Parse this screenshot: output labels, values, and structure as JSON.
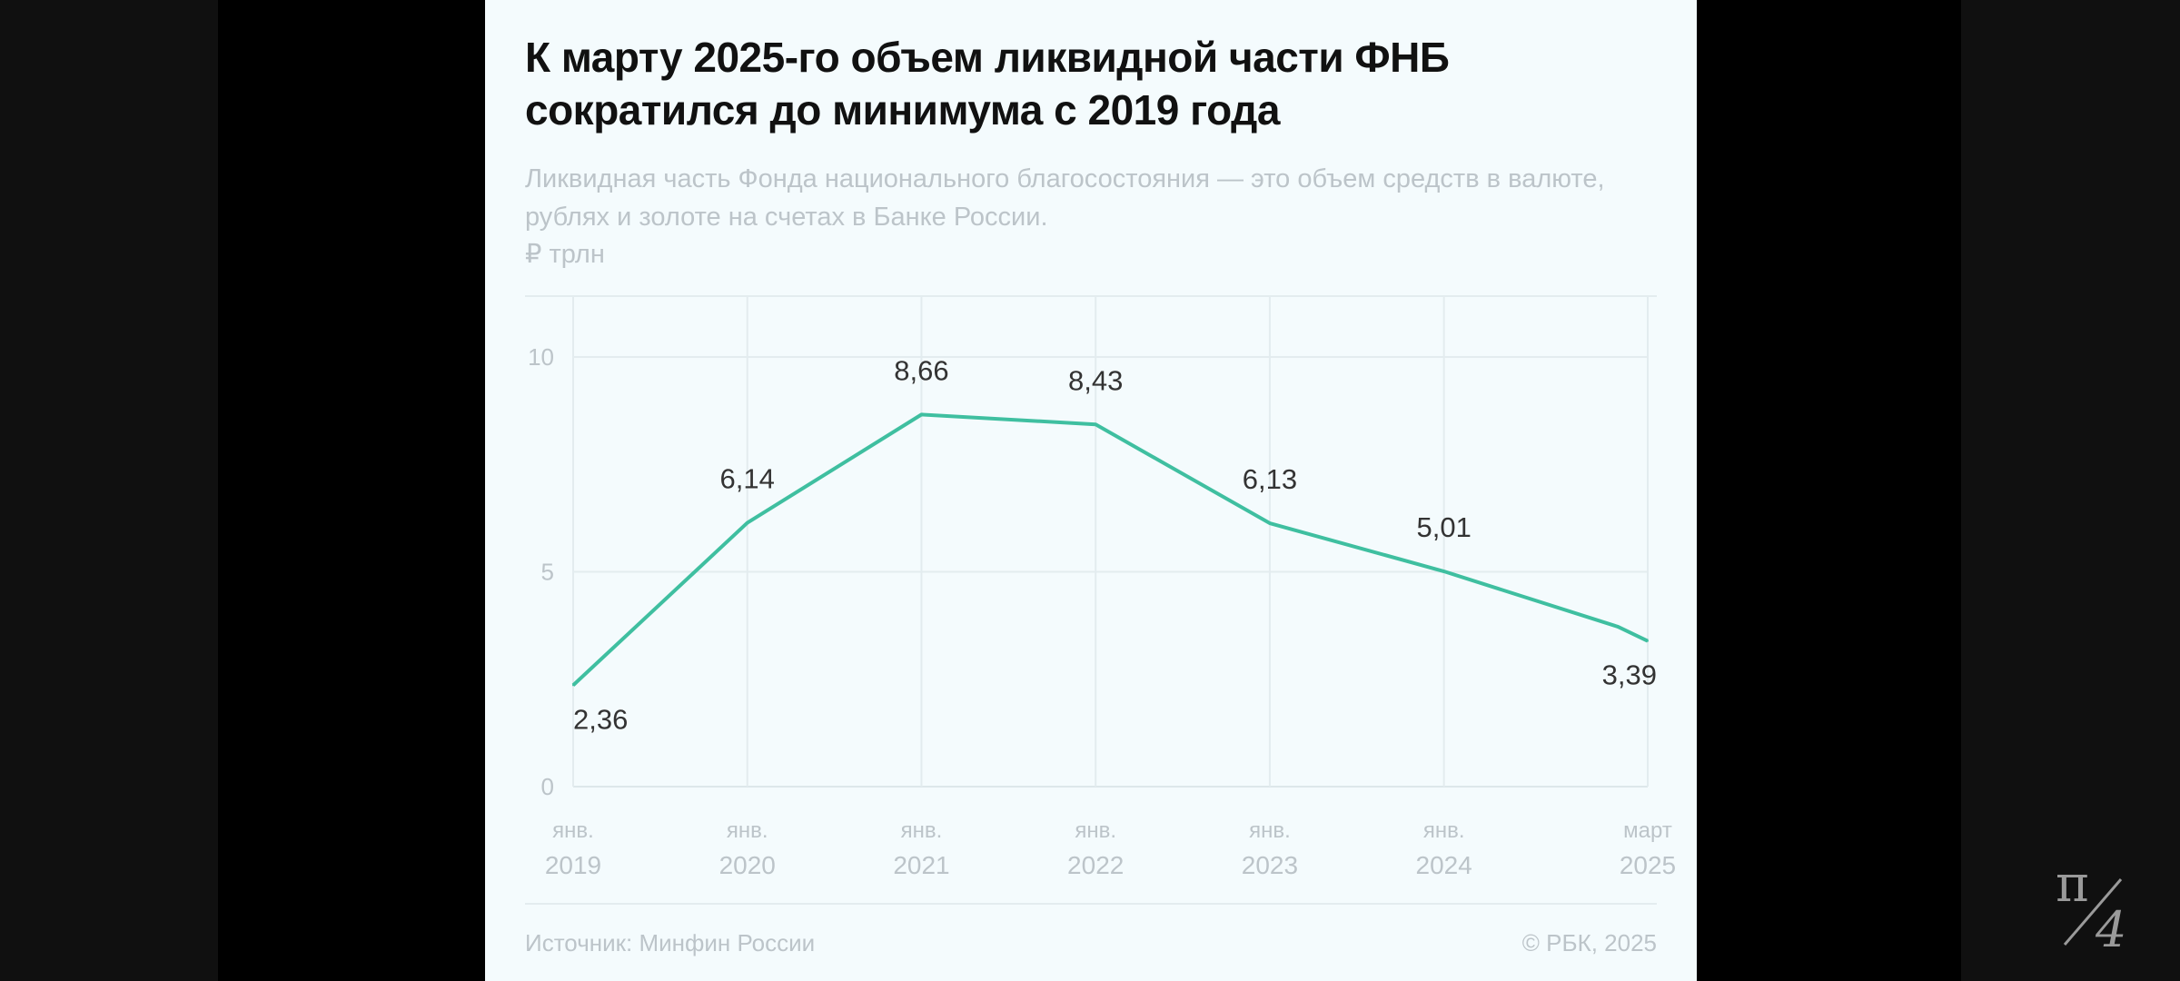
{
  "title": "К марту 2025-го объем ликвидной части ФНБ сократился до минимума с 2019 года",
  "subtitle": "Ликвидная часть Фонда национального благосостояния — это объем средств в валюте, рублях и золоте на счетах в Банке России.",
  "unit": "₽ трлн",
  "footer": {
    "source": "Источник: Минфин России",
    "copyright": "© РБК, 2025"
  },
  "colors": {
    "line": "#3fbfa0",
    "background": "#f4fbfd",
    "grid": "#e3ecef"
  },
  "chart_data": {
    "type": "line",
    "title": "К марту 2025-го объем ликвидной части ФНБ сократился до минимума с 2019 года",
    "ylabel": "₽ трлн",
    "ylim": [
      0,
      11.5
    ],
    "yticks": [
      0,
      5,
      10
    ],
    "ytick_labels": [
      "0",
      "5",
      "10"
    ],
    "xlim": [
      2019,
      2025.17
    ],
    "xticks": [
      {
        "x": 2019,
        "l1": "янв.",
        "l2": "2019"
      },
      {
        "x": 2020,
        "l1": "янв.",
        "l2": "2020"
      },
      {
        "x": 2021,
        "l1": "янв.",
        "l2": "2021"
      },
      {
        "x": 2022,
        "l1": "янв.",
        "l2": "2022"
      },
      {
        "x": 2023,
        "l1": "янв.",
        "l2": "2023"
      },
      {
        "x": 2024,
        "l1": "янв.",
        "l2": "2024"
      },
      {
        "x": 2025.17,
        "l1": "март",
        "l2": "2025"
      }
    ],
    "grid": true,
    "series": [
      {
        "name": "Ликвидная часть ФНБ",
        "points": [
          {
            "x": 2019,
            "y": 2.36,
            "label": "2,36",
            "pos": "below"
          },
          {
            "x": 2020,
            "y": 6.14,
            "label": "6,14",
            "pos": "above"
          },
          {
            "x": 2021,
            "y": 8.66,
            "label": "8,66",
            "pos": "above"
          },
          {
            "x": 2022,
            "y": 8.43,
            "label": "8,43",
            "pos": "above"
          },
          {
            "x": 2023,
            "y": 6.13,
            "label": "6,13",
            "pos": "above"
          },
          {
            "x": 2024,
            "y": 5.01,
            "label": "5,01",
            "pos": "above"
          },
          {
            "x": 2025,
            "y": 3.72,
            "label": null,
            "pos": null
          },
          {
            "x": 2025.17,
            "y": 3.39,
            "label": "3,39",
            "pos": "below"
          }
        ]
      }
    ]
  }
}
